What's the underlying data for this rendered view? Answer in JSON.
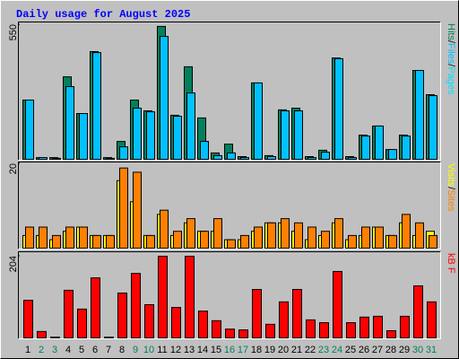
{
  "chart_data": [
    {
      "type": "bar",
      "title": "Daily usage for August 2025",
      "ylim": [
        0,
        550
      ],
      "yticks": [
        550
      ],
      "series": [
        {
          "name": "Hits",
          "color": "#00805c",
          "values": [
            242,
            7,
            7,
            337,
            187,
            440,
            7,
            73,
            242,
            198,
            543,
            180,
            378,
            169,
            26,
            62,
            11,
            312,
            15,
            202,
            209,
            11,
            37,
            414,
            11,
            99,
            136,
            40,
            99,
            363,
            264
          ]
        },
        {
          "name": "Files",
          "color": "#00c0ff",
          "values": [
            242,
            7,
            4,
            297,
            187,
            436,
            4,
            51,
            209,
            194,
            502,
            176,
            271,
            73,
            15,
            26,
            7,
            312,
            11,
            198,
            198,
            7,
            29,
            411,
            7,
            95,
            136,
            40,
            95,
            363,
            260
          ]
        }
      ],
      "legend_extra": {
        "name": "Pages",
        "color": "#00e0ff"
      },
      "separator": "/"
    },
    {
      "type": "bar",
      "ylim": [
        0,
        20
      ],
      "yticks": [
        20
      ],
      "series": [
        {
          "name": "Visits",
          "color": "#ffff00",
          "values": [
            3,
            3,
            2,
            4,
            5,
            3,
            3,
            16,
            11,
            3,
            8,
            3,
            6,
            4,
            4,
            2,
            2,
            4,
            6,
            6,
            4,
            2,
            3,
            6,
            2,
            3,
            5,
            3,
            6,
            3,
            4
          ]
        },
        {
          "name": "Sites",
          "color": "#ff8000",
          "values": [
            5,
            5,
            3,
            5,
            5,
            3,
            3,
            19,
            18,
            3,
            9,
            4,
            7,
            4,
            7,
            2,
            3,
            5,
            6,
            7,
            6,
            5,
            4,
            7,
            3,
            5,
            5,
            3,
            8,
            6,
            3
          ]
        }
      ],
      "separator": "/"
    },
    {
      "type": "bar",
      "ylim": [
        0,
        204
      ],
      "yticks": [
        204
      ],
      "categories": [
        "1",
        "2",
        "3",
        "4",
        "5",
        "6",
        "7",
        "8",
        "9",
        "10",
        "11",
        "12",
        "13",
        "14",
        "15",
        "16",
        "17",
        "18",
        "19",
        "20",
        "21",
        "22",
        "23",
        "24",
        "25",
        "26",
        "27",
        "28",
        "29",
        "30",
        "31"
      ],
      "category_colors": [
        "#000",
        "#00805c",
        "#00805c",
        "#000",
        "#000",
        "#000",
        "#000",
        "#000",
        "#00805c",
        "#00805c",
        "#000",
        "#000",
        "#000",
        "#000",
        "#000",
        "#00805c",
        "#00805c",
        "#000",
        "#000",
        "#000",
        "#000",
        "#000",
        "#00805c",
        "#00805c",
        "#000",
        "#000",
        "#000",
        "#000",
        "#000",
        "#00805c",
        "#00805c"
      ],
      "series": [
        {
          "name": "kB F",
          "color": "#ff0000",
          "values": [
            94,
            16,
            2,
            119,
            72,
            150,
            2,
            112,
            161,
            83,
            204,
            76,
            204,
            67,
            43,
            22,
            20,
            121,
            34,
            90,
            121,
            45,
            38,
            166,
            38,
            52,
            54,
            18,
            54,
            130,
            90
          ]
        }
      ]
    }
  ]
}
